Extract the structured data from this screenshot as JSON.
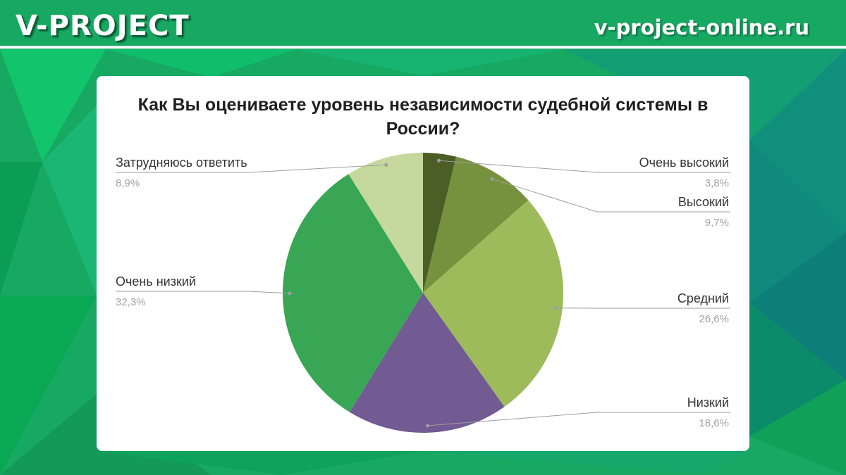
{
  "header": {
    "brand": "V-PROJECT",
    "site": "v-project-online.ru"
  },
  "chart_data": {
    "type": "pie",
    "title": "Как Вы оцениваете уровень независимости судебной системы в России?",
    "categories": [
      "Очень высокий",
      "Высокий",
      "Средний",
      "Низкий",
      "Очень низкий",
      "Затрудняюсь ответить"
    ],
    "values": [
      3.8,
      9.7,
      26.6,
      18.6,
      32.3,
      8.9
    ],
    "value_labels": [
      "3,8%",
      "9,7%",
      "26,6%",
      "18,6%",
      "32,3%",
      "8,9%"
    ],
    "colors": [
      "#4a5e25",
      "#77923f",
      "#9dbb5a",
      "#725a92",
      "#38a654",
      "#c5d89d"
    ],
    "start": "12 o'clock",
    "direction": "clockwise",
    "legend": "callout labels"
  }
}
